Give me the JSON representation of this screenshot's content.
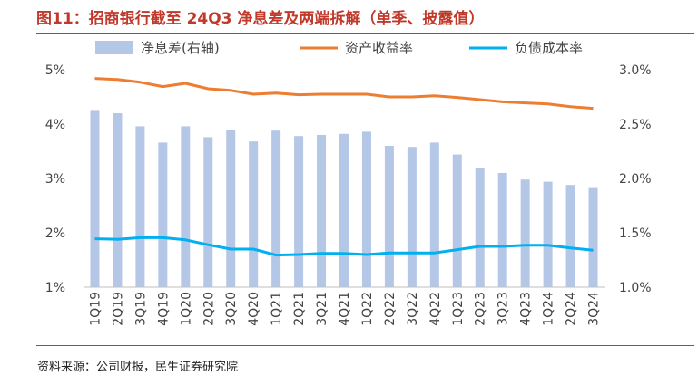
{
  "title": "图11：招商银行截至 24Q3 净息差及两端拆解（单季、披露值）",
  "source": "资料来源：公司财报，民生证券研究院",
  "chart_data": {
    "type": "bar+line",
    "categories": [
      "1Q19",
      "2Q19",
      "3Q19",
      "4Q19",
      "1Q20",
      "2Q20",
      "3Q20",
      "4Q20",
      "1Q21",
      "2Q21",
      "3Q21",
      "4Q21",
      "1Q22",
      "2Q22",
      "3Q22",
      "4Q22",
      "1Q23",
      "2Q23",
      "3Q23",
      "4Q23",
      "1Q24",
      "2Q24",
      "3Q24"
    ],
    "left_axis": {
      "ticks": [
        "1%",
        "2%",
        "3%",
        "4%",
        "5%"
      ],
      "min": 1,
      "max": 5
    },
    "right_axis": {
      "ticks": [
        "1.0%",
        "1.5%",
        "2.0%",
        "2.5%",
        "3.0%"
      ],
      "min": 1.0,
      "max": 3.0
    },
    "legend_position": "top",
    "series": [
      {
        "name": "净息差(右轴)",
        "type": "bar",
        "axis": "right",
        "color": "#b4c7e7",
        "values": [
          2.63,
          2.6,
          2.48,
          2.33,
          2.48,
          2.38,
          2.45,
          2.34,
          2.44,
          2.39,
          2.4,
          2.41,
          2.43,
          2.3,
          2.29,
          2.33,
          2.22,
          2.1,
          2.05,
          1.99,
          1.97,
          1.94,
          1.92
        ]
      },
      {
        "name": "资产收益率",
        "type": "line",
        "axis": "left",
        "color": "#ed7d31",
        "values": [
          4.84,
          4.82,
          4.77,
          4.69,
          4.75,
          4.65,
          4.62,
          4.55,
          4.57,
          4.54,
          4.55,
          4.55,
          4.55,
          4.5,
          4.5,
          4.52,
          4.49,
          4.45,
          4.41,
          4.39,
          4.37,
          4.32,
          4.29
        ]
      },
      {
        "name": "负债成本率",
        "type": "line",
        "axis": "left",
        "color": "#00b0f0",
        "values": [
          1.89,
          1.88,
          1.91,
          1.91,
          1.87,
          1.78,
          1.7,
          1.7,
          1.59,
          1.6,
          1.62,
          1.62,
          1.6,
          1.63,
          1.63,
          1.63,
          1.69,
          1.75,
          1.75,
          1.77,
          1.77,
          1.72,
          1.68
        ]
      }
    ]
  }
}
